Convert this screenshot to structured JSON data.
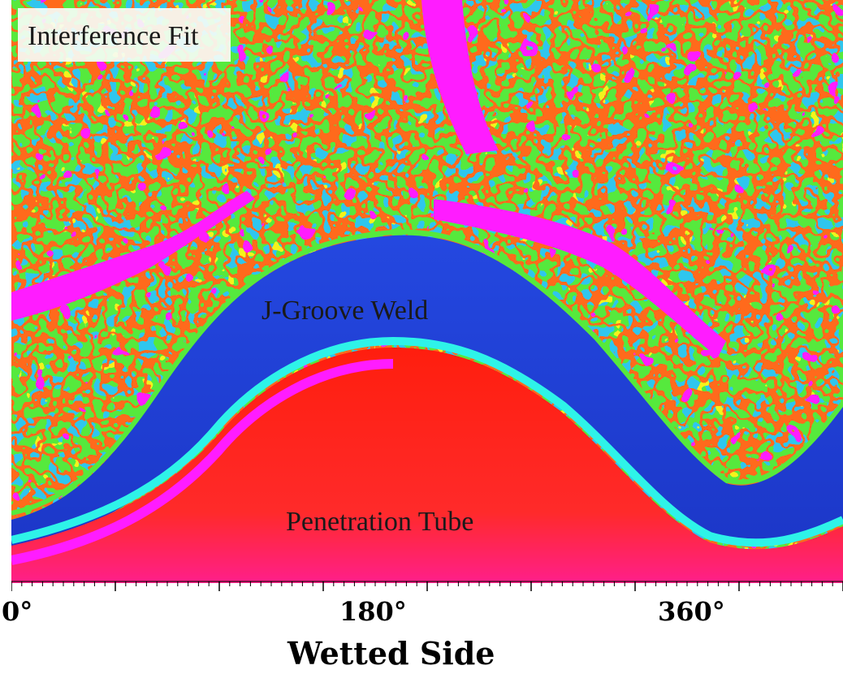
{
  "image": {
    "title": "Interference Fit",
    "regions": {
      "weld": "J-Groove Weld",
      "tube": "Penetration Tube"
    }
  },
  "axis": {
    "ticks": [
      "0°",
      "180°",
      "360°"
    ],
    "title": "Wetted Side"
  },
  "colors": {
    "tube": "#ff2a10",
    "tube_edge": "#ff1cff",
    "weld": "#1d3fd6",
    "weld_light": "#3d7dff",
    "ring": "#2ef3e8",
    "noise_green": "#56e93c",
    "noise_yellow": "#f4f31a",
    "noise_cyan": "#25c7f0",
    "noise_magenta": "#ff1cff"
  }
}
